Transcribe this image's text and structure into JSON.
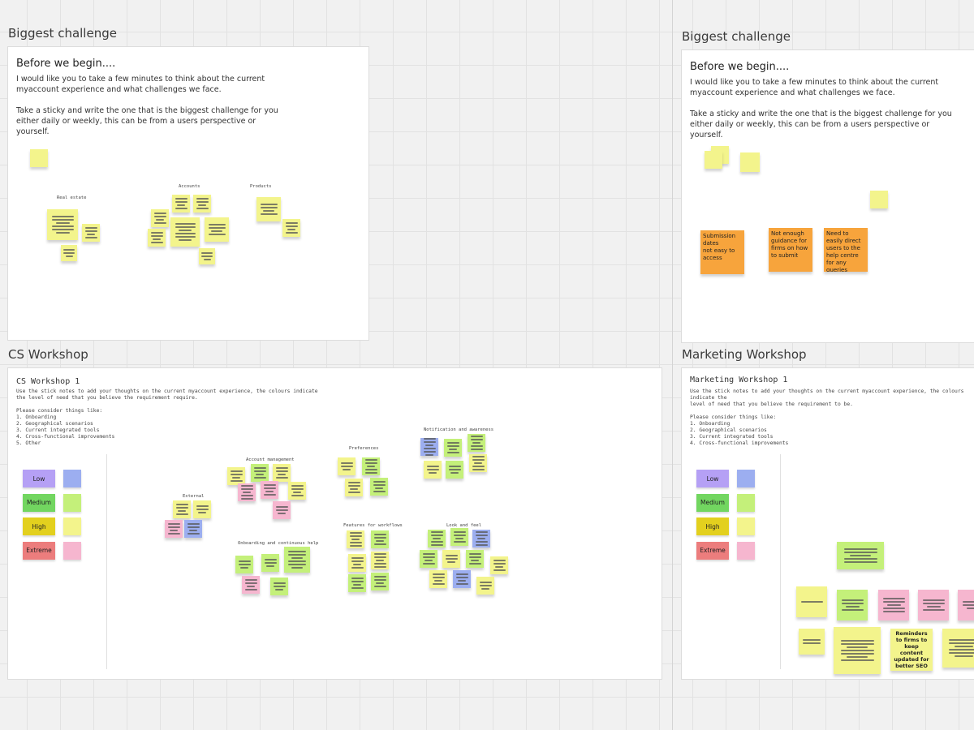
{
  "colors": {
    "yellow": "#f3f48c",
    "green": "#c4f07a",
    "pink": "#f6b6cf",
    "blue": "#9caef0",
    "orange": "#f7a43c",
    "low": "#b5a0f5",
    "medium": "#72d660",
    "high": "#e3d01e",
    "extreme": "#ec7d7d"
  },
  "frames": {
    "challenge1": {
      "label": "Biggest challenge",
      "heading": "Before we begin....",
      "body": "I would like you to take a few minutes to think about the current\nmyaccount experience and what challenges we face.\n\nTake a sticky and write the one that is the biggest challenge for you\neither daily or weekly, this can be from a users perspective or\nyourself.",
      "clusters": [
        "Real estate",
        "Accounts",
        "Products"
      ]
    },
    "challenge2": {
      "label": "Biggest challenge",
      "heading": "Before we begin....",
      "body": "I would like you to take a few minutes to think about the current\nmyaccount experience and what challenges we face.\n\nTake a sticky and write the one that is the biggest challenge for you\neither daily or weekly, this can be from a users perspective or\nyourself.",
      "stickies": [
        "Submission dates\nnot easy to access",
        "Not enough guidance for firms on how to submit",
        "Need to easily direct users to the help centre for any queries"
      ]
    },
    "cs": {
      "label": "CS Workshop",
      "heading": "CS Workshop 1",
      "body": "Use the stick notes to add your thoughts on the current myaccount experience, the colours indicate\nthe level of need that you believe the requirement require.\n\nPlease consider things like:\n 1. Onboarding\n 2. Geographical scenarios\n 3. Current integrated tools\n 4. Cross-functional improvements\n 5. Other",
      "legend": [
        "Low",
        "Medium",
        "High",
        "Extreme"
      ],
      "clusters": [
        "External",
        "Account management",
        "Preferences",
        "Notification and awareness",
        "Features for workflows",
        "Onboarding and continuous help",
        "Look and feel"
      ]
    },
    "marketing": {
      "label": "Marketing Workshop",
      "heading": "Marketing Workshop 1",
      "body": "Use the stick notes to add your thoughts on the current myaccount experience, the colours indicate the\nlevel of need that you believe the requirement to be.\n\nPlease consider things like:\n 1. Onboarding\n 2. Geographical scenarios\n 3. Current integrated tools\n 4. Cross-functional improvements",
      "legend": [
        "Low",
        "Medium",
        "High",
        "Extreme"
      ],
      "sticky_bold": "Reminders to firms to keep content updated for better SEO"
    }
  }
}
